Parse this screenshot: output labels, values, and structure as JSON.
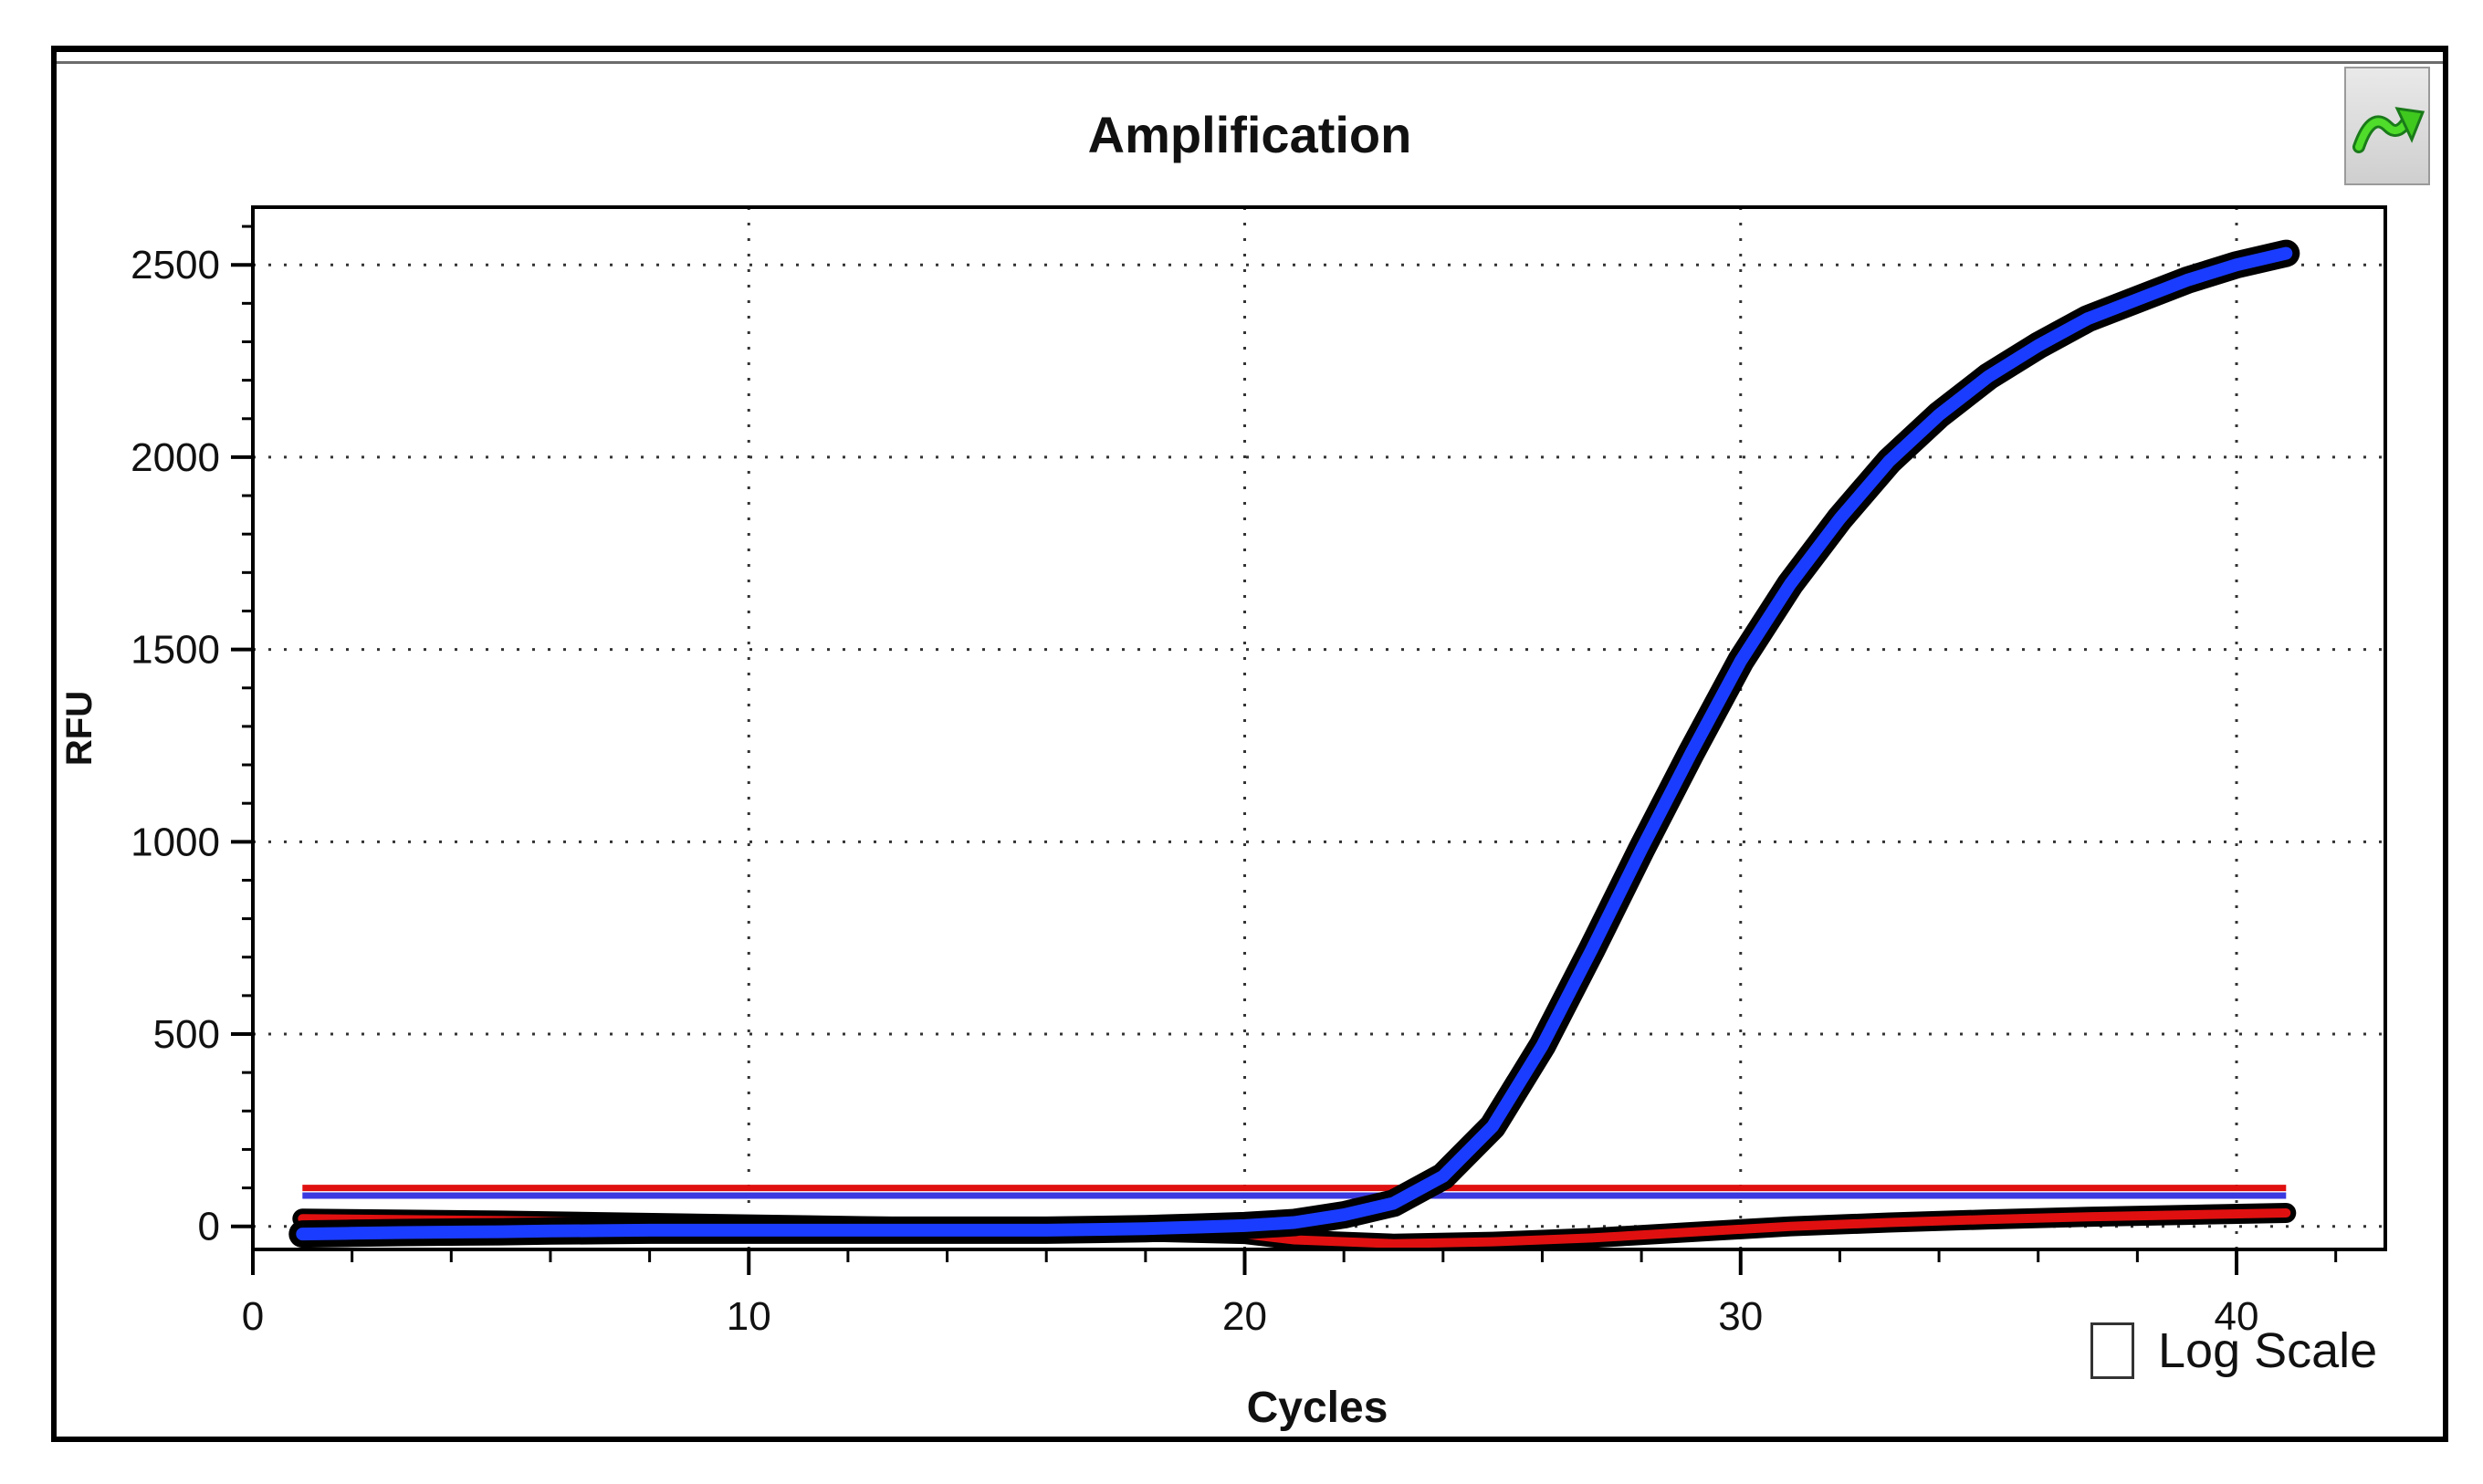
{
  "window": {
    "title": "Amplification"
  },
  "controls": {
    "log_scale_label": "Log Scale",
    "log_scale_checked": false,
    "corner_button_icon": "green-curve-arrow-icon"
  },
  "chart_data": {
    "type": "line",
    "title": "Amplification",
    "xlabel": "Cycles",
    "ylabel": "RFU",
    "xlim": [
      0,
      43
    ],
    "ylim": [
      -60,
      2650
    ],
    "x_ticks": [
      0,
      10,
      20,
      30,
      40
    ],
    "y_ticks": [
      0,
      500,
      1000,
      1500,
      2000,
      2500
    ],
    "grid": true,
    "log_scale": false,
    "series": [
      {
        "color": "#1a3cff",
        "x": [
          1,
          2,
          3,
          4,
          5,
          6,
          7,
          8,
          9,
          10,
          11,
          12,
          13,
          14,
          15,
          16,
          17,
          18,
          19,
          20,
          21,
          22,
          23,
          24,
          25,
          26,
          27,
          28,
          29,
          30,
          31,
          32,
          33,
          34,
          35,
          36,
          37,
          38,
          39,
          40,
          41
        ],
        "y": [
          -20,
          -18,
          -16,
          -15,
          -14,
          -12,
          -11,
          -10,
          -10,
          -10,
          -10,
          -10,
          -10,
          -10,
          -10,
          -10,
          -8,
          -6,
          -2,
          2,
          10,
          30,
          60,
          130,
          260,
          470,
          720,
          980,
          1230,
          1470,
          1670,
          1840,
          1990,
          2110,
          2210,
          2290,
          2360,
          2410,
          2460,
          2500,
          2530
        ]
      },
      {
        "color": "#e01010",
        "x": [
          1,
          5,
          10,
          15,
          20,
          21,
          23,
          25,
          27,
          29,
          31,
          33,
          35,
          37,
          39,
          41
        ],
        "y": [
          20,
          15,
          5,
          -5,
          -20,
          -35,
          -45,
          -40,
          -30,
          -15,
          0,
          10,
          18,
          25,
          30,
          35
        ]
      },
      {
        "color": "#e01010",
        "x": [
          1,
          41
        ],
        "y": [
          100,
          100
        ]
      },
      {
        "color": "#3a3ae0",
        "x": [
          1,
          41
        ],
        "y": [
          80,
          80
        ]
      }
    ]
  }
}
